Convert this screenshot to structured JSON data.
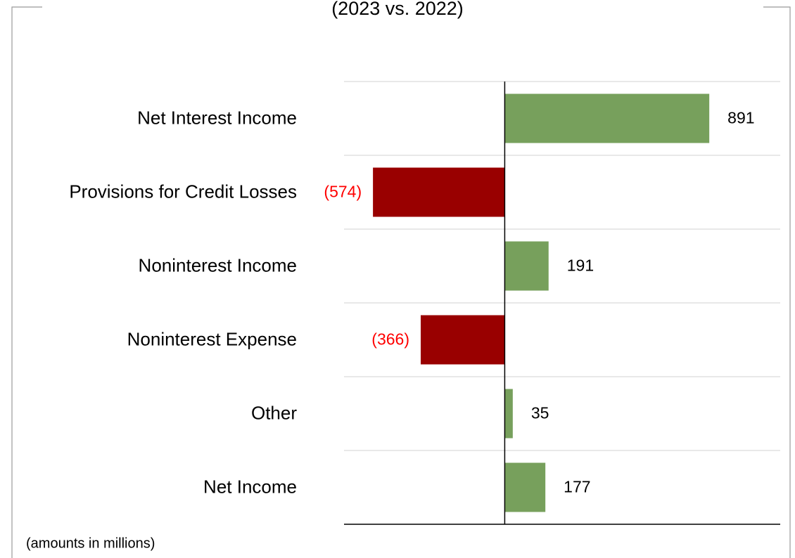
{
  "chart_data": {
    "type": "bar",
    "orientation": "horizontal",
    "title": "(2023 vs. 2022)",
    "categories": [
      "Net Interest Income",
      "Provisions for Credit Losses",
      "Noninterest Income",
      "Noninterest Expense",
      "Other",
      "Net Income"
    ],
    "values": [
      891,
      -574,
      191,
      -366,
      35,
      177
    ],
    "value_labels": [
      "891",
      "(574)",
      "191",
      "(366)",
      "35",
      "177"
    ],
    "colors": [
      "#77a05c",
      "#990000",
      "#77a05c",
      "#990000",
      "#77a05c",
      "#77a05c"
    ],
    "xlim": [
      -700,
      1200
    ],
    "grid": true,
    "note": "(amounts in millions)"
  }
}
